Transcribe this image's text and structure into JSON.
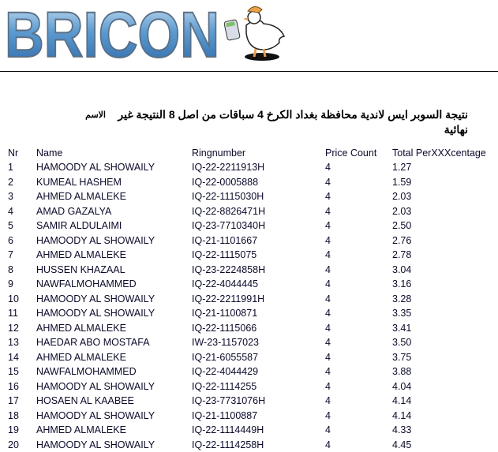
{
  "header": {
    "logo_text": "BRICON",
    "brand_color": "#3f7fbf",
    "title": "نتيجة السوبر ايس لاندية محافظة بغداد الكرخ 4 سباقات من اصل 8 النتيجة غير نهائية",
    "name_label": "الاسم"
  },
  "table": {
    "columns": [
      "Nr",
      "Name",
      "Ringnumber",
      "Price Count",
      "Total PerXXXcentage"
    ],
    "rows": [
      [
        "1",
        "HAMOODY AL SHOWAILY",
        "IQ-22-2211913H",
        "4",
        "1.27"
      ],
      [
        "2",
        "KUMEAL HASHEM",
        "IQ-22-0005888",
        "4",
        "1.59"
      ],
      [
        "3",
        "AHMED ALMALEKE",
        "IQ-22-1115030H",
        "4",
        "2.03"
      ],
      [
        "4",
        "AMAD GAZALYA",
        "IQ-22-8826471H",
        "4",
        "2.03"
      ],
      [
        "5",
        "SAMIR ALDULAIMI",
        "IQ-23-7710340H",
        "4",
        "2.50"
      ],
      [
        "6",
        "HAMOODY AL SHOWAILY",
        "IQ-21-1101667",
        "4",
        "2.76"
      ],
      [
        "7",
        "AHMED ALMALEKE",
        "IQ-22-1115075",
        "4",
        "2.78"
      ],
      [
        "8",
        "HUSSEN KHAZAAL",
        "IQ-23-2224858H",
        "4",
        "3.04"
      ],
      [
        "9",
        "NAWFALMOHAMMED",
        "IQ-22-4044445",
        "4",
        "3.16"
      ],
      [
        "10",
        "HAMOODY AL SHOWAILY",
        "IQ-22-2211991H",
        "4",
        "3.28"
      ],
      [
        "11",
        "HAMOODY AL SHOWAILY",
        "IQ-21-1100871",
        "4",
        "3.35"
      ],
      [
        "12",
        "AHMED ALMALEKE",
        "IQ-22-1115066",
        "4",
        "3.41"
      ],
      [
        "13",
        "HAEDAR ABO MOSTAFA",
        "IW-23-1157023",
        "4",
        "3.50"
      ],
      [
        "14",
        "AHMED ALMALEKE",
        "IQ-21-6055587",
        "4",
        "3.75"
      ],
      [
        "15",
        "NAWFALMOHAMMED",
        "IQ-22-4044429",
        "4",
        "3.88"
      ],
      [
        "16",
        "HAMOODY AL SHOWAILY",
        "IQ-22-1114255",
        "4",
        "4.04"
      ],
      [
        "17",
        "HOSAEN AL KAABEE",
        "IQ-23-7731076H",
        "4",
        "4.14"
      ],
      [
        "18",
        "HAMOODY AL SHOWAILY",
        "IQ-21-1100887",
        "4",
        "4.14"
      ],
      [
        "19",
        "AHMED ALMALEKE",
        "IQ-22-1114449H",
        "4",
        "4.33"
      ],
      [
        "20",
        "HAMOODY AL SHOWAILY",
        "IQ-22-1114258H",
        "4",
        "4.45"
      ]
    ]
  }
}
